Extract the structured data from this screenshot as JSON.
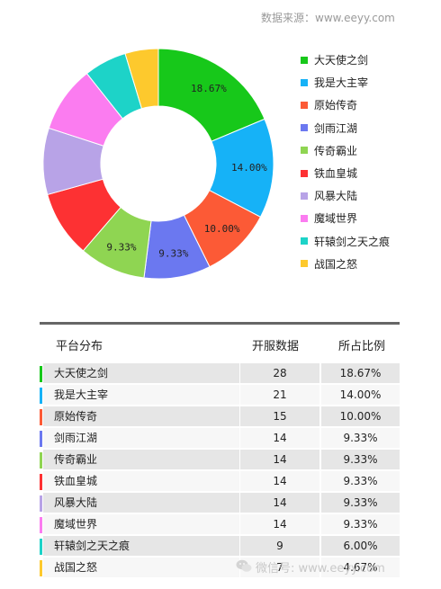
{
  "source": "数据来源：www.eeyy.com",
  "table": {
    "headers": [
      "平台分布",
      "开服数据",
      "所占比例"
    ]
  },
  "watermark": "微信号: www.eeyy.com",
  "chart_data": {
    "type": "pie",
    "donut": true,
    "legend_position": "right",
    "categories": [
      "大天使之剑",
      "我是大主宰",
      "原始传奇",
      "剑雨江湖",
      "传奇霸业",
      "铁血皇城",
      "风暴大陆",
      "魔域世界",
      "轩辕剑之天之痕",
      "战国之怒"
    ],
    "values": [
      28,
      21,
      15,
      14,
      14,
      14,
      14,
      14,
      9,
      7
    ],
    "percent_labels": [
      "18.67%",
      "14.00%",
      "10.00%",
      "9.33%",
      "9.33%",
      "9.33%",
      "9.33%",
      "9.33%",
      "6.00%",
      "4.67%"
    ],
    "shown_slice_labels": [
      true,
      true,
      true,
      true,
      true,
      false,
      false,
      false,
      false,
      false
    ],
    "colors": [
      "#17c81a",
      "#16b2f7",
      "#fc5a36",
      "#6b78f0",
      "#8fd552",
      "#fd3133",
      "#b8a3e7",
      "#fb7cf0",
      "#1dd3c8",
      "#fdc92d"
    ]
  }
}
